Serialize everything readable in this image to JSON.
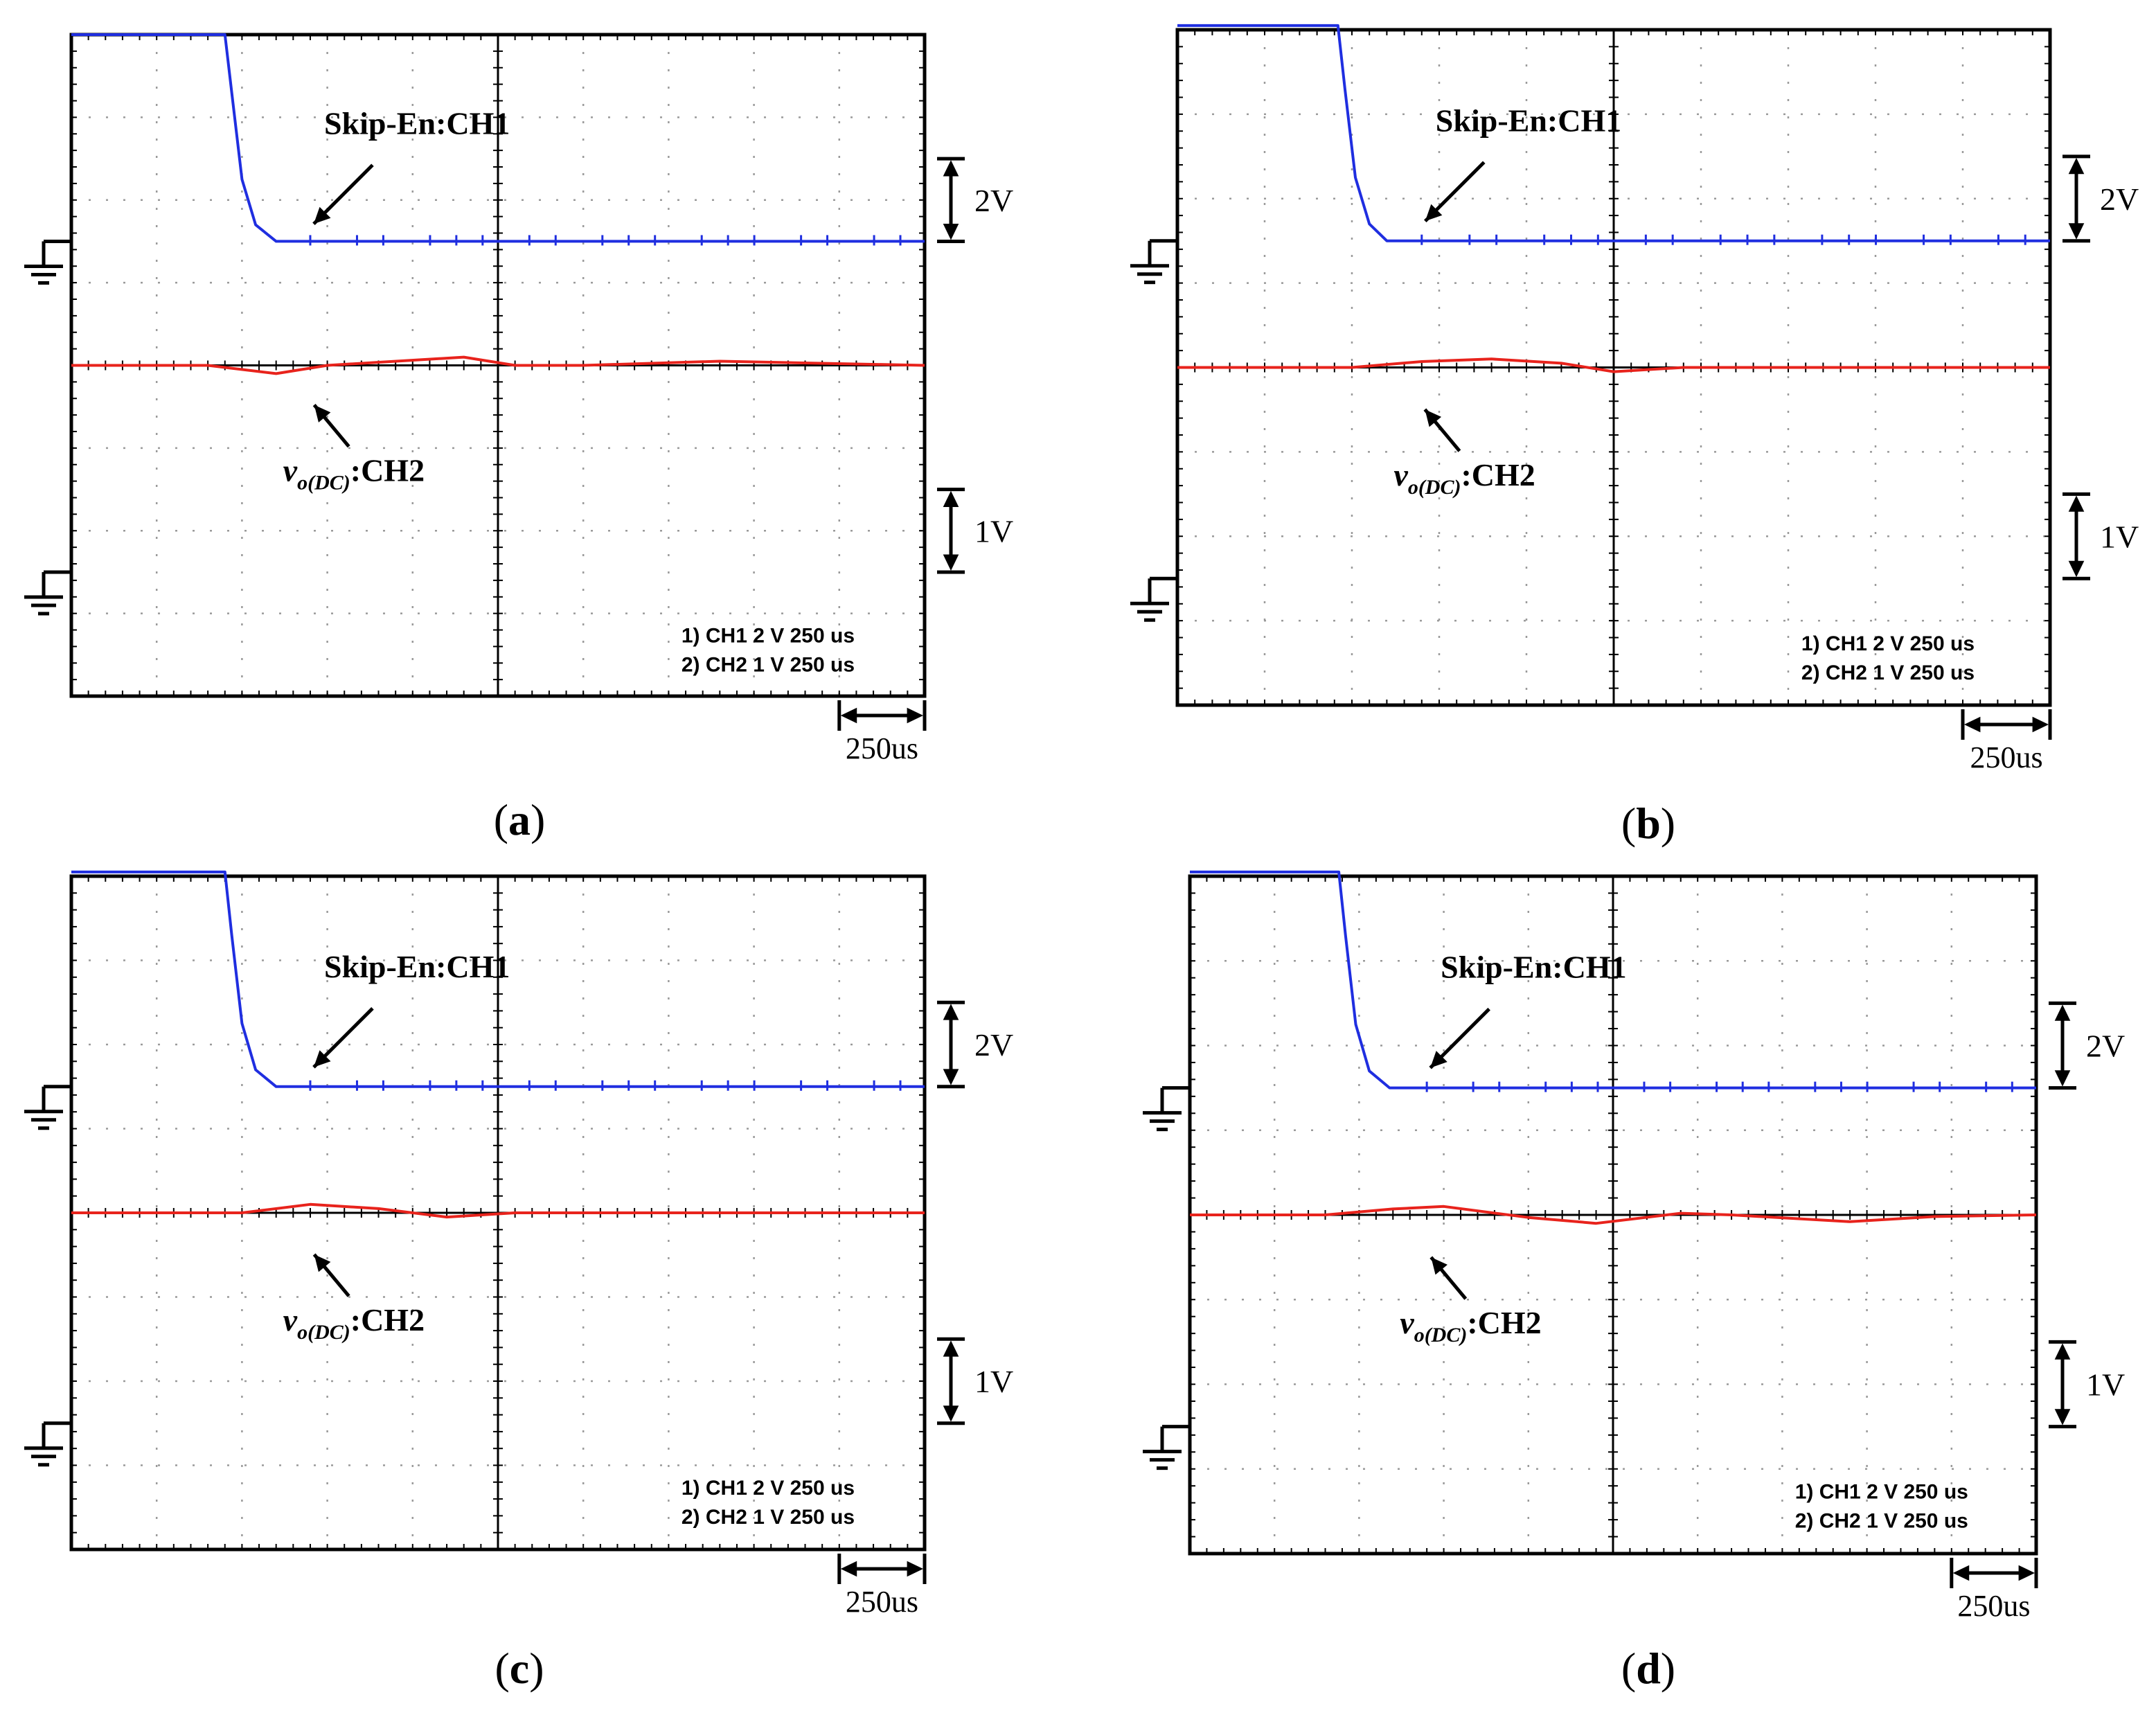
{
  "figure": {
    "background": "#ffffff",
    "grid_color": "#9a9a9a",
    "frame_color": "#000000",
    "ch1_color": "#1f2ee0",
    "ch2_color": "#e8231c",
    "ch1_label": "Skip-En:CH1",
    "ch2_label_v": "v",
    "ch2_label_sub": "o(DC)",
    "ch2_label_suffix": ":CH2",
    "scale_ch1": "2V",
    "scale_ch2": "1V",
    "scale_time": "250us",
    "readout_line1": "1) CH1  2  V    250 us",
    "readout_line2": "2) CH2  1  V    250 us",
    "ground_icon": "ground-symbol-icon"
  },
  "chart_data": [
    {
      "type": "line",
      "panel": "a",
      "caption": "(a)",
      "caption_letter": "a",
      "x_unit": "us",
      "x_range": [
        0,
        2500
      ],
      "x_div": 250,
      "divisions": {
        "x": 10,
        "y": 8
      },
      "series": [
        {
          "name": "Skip-En:CH1",
          "channel": "CH1",
          "v_per_div": 2,
          "points": [
            [
              0,
              5.0
            ],
            [
              450,
              5.0
            ],
            [
              470,
              3.6
            ],
            [
              500,
              1.5
            ],
            [
              540,
              0.4
            ],
            [
              600,
              0.0
            ],
            [
              2500,
              0.0
            ]
          ]
        },
        {
          "name": "vo(DC):CH2",
          "channel": "CH2",
          "v_per_div": 1,
          "points": [
            [
              0,
              2.5
            ],
            [
              400,
              2.5
            ],
            [
              600,
              2.4
            ],
            [
              750,
              2.5
            ],
            [
              1150,
              2.6
            ],
            [
              1300,
              2.5
            ],
            [
              1500,
              2.5
            ],
            [
              1900,
              2.55
            ],
            [
              2500,
              2.5
            ]
          ]
        }
      ]
    },
    {
      "type": "line",
      "panel": "b",
      "caption": "(b)",
      "caption_letter": "b",
      "x_unit": "us",
      "x_range": [
        0,
        2500
      ],
      "x_div": 250,
      "divisions": {
        "x": 10,
        "y": 8
      },
      "series": [
        {
          "name": "Skip-En:CH1",
          "channel": "CH1",
          "v_per_div": 2,
          "points": [
            [
              0,
              5.1
            ],
            [
              460,
              5.1
            ],
            [
              480,
              3.6
            ],
            [
              510,
              1.5
            ],
            [
              550,
              0.4
            ],
            [
              600,
              0.0
            ],
            [
              2500,
              0.0
            ]
          ]
        },
        {
          "name": "vo(DC):CH2",
          "channel": "CH2",
          "v_per_div": 1,
          "points": [
            [
              0,
              2.5
            ],
            [
              500,
              2.5
            ],
            [
              700,
              2.57
            ],
            [
              900,
              2.6
            ],
            [
              1100,
              2.55
            ],
            [
              1250,
              2.45
            ],
            [
              1450,
              2.5
            ],
            [
              1700,
              2.5
            ],
            [
              2500,
              2.5
            ]
          ]
        }
      ]
    },
    {
      "type": "line",
      "panel": "c",
      "caption": "(c)",
      "caption_letter": "c",
      "x_unit": "us",
      "x_range": [
        0,
        2500
      ],
      "x_div": 250,
      "divisions": {
        "x": 10,
        "y": 8
      },
      "series": [
        {
          "name": "Skip-En:CH1",
          "channel": "CH1",
          "v_per_div": 2,
          "points": [
            [
              0,
              5.1
            ],
            [
              450,
              5.1
            ],
            [
              470,
              3.6
            ],
            [
              500,
              1.5
            ],
            [
              540,
              0.4
            ],
            [
              600,
              0.0
            ],
            [
              2500,
              0.0
            ]
          ]
        },
        {
          "name": "vo(DC):CH2",
          "channel": "CH2",
          "v_per_div": 1,
          "points": [
            [
              0,
              2.5
            ],
            [
              500,
              2.5
            ],
            [
              700,
              2.6
            ],
            [
              900,
              2.55
            ],
            [
              1100,
              2.45
            ],
            [
              1300,
              2.5
            ],
            [
              1600,
              2.5
            ],
            [
              2500,
              2.5
            ]
          ]
        }
      ]
    },
    {
      "type": "line",
      "panel": "d",
      "caption": "(d)",
      "caption_letter": "d",
      "x_unit": "us",
      "x_range": [
        0,
        2500
      ],
      "x_div": 250,
      "divisions": {
        "x": 10,
        "y": 8
      },
      "series": [
        {
          "name": "Skip-En:CH1",
          "channel": "CH1",
          "v_per_div": 2,
          "points": [
            [
              0,
              5.1
            ],
            [
              440,
              5.1
            ],
            [
              460,
              3.6
            ],
            [
              490,
              1.5
            ],
            [
              530,
              0.4
            ],
            [
              590,
              0.0
            ],
            [
              2500,
              0.0
            ]
          ]
        },
        {
          "name": "vo(DC):CH2",
          "channel": "CH2",
          "v_per_div": 1,
          "points": [
            [
              0,
              2.5
            ],
            [
              400,
              2.5
            ],
            [
              600,
              2.57
            ],
            [
              750,
              2.6
            ],
            [
              1000,
              2.47
            ],
            [
              1200,
              2.4
            ],
            [
              1450,
              2.52
            ],
            [
              1600,
              2.5
            ],
            [
              1950,
              2.42
            ],
            [
              2200,
              2.48
            ],
            [
              2500,
              2.5
            ]
          ]
        }
      ]
    }
  ]
}
